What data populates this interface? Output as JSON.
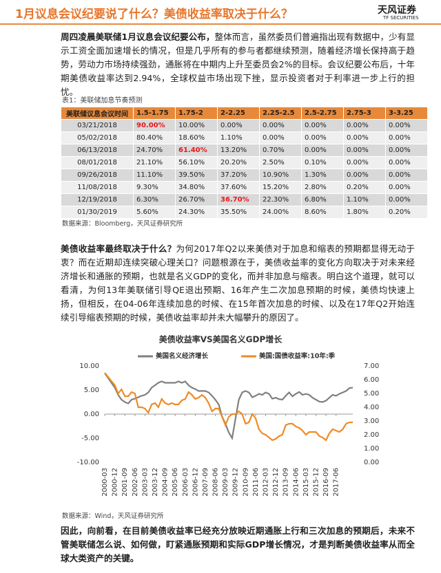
{
  "header": {
    "title": "1月议息会议纪要说了什么？美债收益率取决于什么？",
    "logo": "天风证券",
    "logo_sub": "TF SECURITIES"
  },
  "paragraphs": [
    {
      "lead": "周四凌晨美联储1月议息会议纪要公布，",
      "body": "整体而言，虽然委员们普遍指出现有数据中，少有显示工资全面加速增长的情况，但是几乎所有的参与者都继续预测，随着经济增长保持高于趋势，劳动力市场持续强劲，通胀将在中期内上升至委员会2%的目标。会议纪要公布后，十年期美债收益率达到2.94%，全球权益市场出现下挫，显示投资者对于利率进一步上行的担忧。"
    },
    {
      "lead": "美债收益率最终取决于什么？",
      "body": "为何2017年Q2以来美债对于加息和缩表的预期都显得无动于衷？而在近期却连续突破心理关口？问题根源在于，美债收益率的变化方向取决于对未来经济增长和通胀的预期，也就是名义GDP的变化，而并非加息与缩表。明白这个道理，就可以看清，为何13年美联储引导QE退出预期、16年产生二次加息预期的时候，美债均快速上扬，但相反，在04-06年连续加息的时候、在15年首次加息的时候、以及在17年Q2开始连续引导缩表预期的时候，美债收益率却并未大幅攀升的原因了。"
    }
  ],
  "table": {
    "caption": "表1：美联储加息节奏预测",
    "header": [
      "美联储议息会议时间",
      "1.5-1.75",
      "1.75-2",
      "2-2.25",
      "2.25-2.5",
      "2.5-2.75",
      "2.75-3",
      "3-3.25"
    ],
    "rows": [
      [
        "03/21/2018",
        "90.00%",
        "10.00%",
        "0.00%",
        "0.00%",
        "0.00%",
        "0.00%",
        "0.00%"
      ],
      [
        "05/02/2018",
        "80.40%",
        "18.60%",
        "1.10%",
        "0.00%",
        "0.00%",
        "0.00%",
        "0.00%"
      ],
      [
        "06/13/2018",
        "24.70%",
        "61.40%",
        "13.20%",
        "0.70%",
        "0.00%",
        "0.00%",
        "0.00%"
      ],
      [
        "08/01/2018",
        "21.10%",
        "56.10%",
        "20.20%",
        "2.50%",
        "0.10%",
        "0.00%",
        "0.00%"
      ],
      [
        "09/26/2018",
        "11.10%",
        "39.50%",
        "37.20%",
        "10.90%",
        "1.30%",
        "0.00%",
        "0.00%"
      ],
      [
        "11/08/2018",
        "9.30%",
        "34.80%",
        "37.60%",
        "15.20%",
        "2.80%",
        "0.20%",
        "0.00%"
      ],
      [
        "12/19/2018",
        "6.30%",
        "26.70%",
        "36.70%",
        "22.30%",
        "6.80%",
        "1.10%",
        "0.00%"
      ],
      [
        "01/30/2019",
        "5.60%",
        "24.30%",
        "35.50%",
        "24.00%",
        "8.60%",
        "1.80%",
        "0.20%"
      ]
    ],
    "source": "数据来源：Bloomberg，天风证券研究所"
  },
  "chart": {
    "type": "line",
    "title": "美债收益率VS美国名义GDP增长",
    "categories": [
      "2000-03",
      null,
      null,
      "2000-12",
      null,
      null,
      "2001-09",
      null,
      null,
      "2002-06",
      null,
      null,
      "2003-03",
      null,
      null,
      "2003-12",
      null,
      null,
      "2004-09",
      null,
      null,
      "2005-06",
      null,
      null,
      "2006-03",
      null,
      null,
      "2006-12",
      null,
      null,
      "2007-09",
      null,
      null,
      "2008-06",
      null,
      null,
      "2009-03",
      null,
      null,
      "2009-12",
      null,
      null,
      "2010-09",
      null,
      null,
      "2011-06",
      null,
      null,
      "2012-03",
      null,
      null,
      "2012-12",
      null,
      null,
      "2013-09",
      null,
      null,
      "2014-06",
      null,
      null,
      "2015-03",
      null,
      null,
      "2015-12",
      null,
      null,
      "2016-09",
      null,
      null,
      "2017-06",
      null,
      null,
      null,
      null,
      null
    ],
    "series": [
      {
        "name": "美国名义经济增长",
        "color": "#7f7f7f",
        "values": [
          8.5,
          7.5,
          6.5,
          5.5,
          4.0,
          3.0,
          2.5,
          2.2,
          3.0,
          3.2,
          3.5,
          3.8,
          4.0,
          4.5,
          5.5,
          6.0,
          6.5,
          6.8,
          6.5,
          6.5,
          6.5,
          6.5,
          6.8,
          6.5,
          6.8,
          6.0,
          5.5,
          5.2,
          4.8,
          4.8,
          4.8,
          4.5,
          3.8,
          3.0,
          2.0,
          -0.5,
          -2.0,
          -3.8,
          -5.0,
          -1.0,
          3.0,
          4.5,
          4.8,
          4.5,
          3.5,
          3.8,
          4.2,
          4.0,
          4.5,
          4.2,
          3.2,
          3.4,
          3.1,
          3.0,
          3.8,
          4.5,
          3.7,
          4.2,
          4.6,
          4.0,
          4.2,
          4.0,
          3.4,
          3.0,
          2.6,
          2.5,
          2.8,
          3.4,
          4.0,
          3.8,
          4.2,
          4.5,
          4.8,
          5.4,
          5.5
        ]
      },
      {
        "name": "美国:国债收益率:10年:季",
        "color": "#f08a24",
        "axis": "y2",
        "values": [
          6.5,
          6.2,
          5.9,
          5.6,
          5.0,
          5.3,
          4.8,
          4.8,
          5.1,
          5.0,
          4.0,
          4.0,
          3.9,
          3.6,
          4.2,
          4.3,
          4.0,
          4.6,
          4.3,
          4.2,
          4.3,
          4.2,
          4.2,
          4.5,
          4.6,
          5.1,
          4.9,
          4.6,
          4.7,
          4.9,
          4.7,
          4.3,
          3.7,
          3.9,
          3.9,
          3.3,
          2.7,
          3.3,
          3.5,
          3.5,
          3.7,
          3.5,
          2.8,
          2.9,
          3.5,
          3.2,
          2.4,
          2.1,
          2.0,
          1.8,
          1.6,
          1.7,
          1.9,
          2.0,
          2.7,
          2.8,
          2.8,
          2.6,
          2.5,
          2.3,
          2.0,
          2.2,
          2.2,
          2.2,
          1.9,
          1.8,
          1.6,
          2.1,
          2.4,
          2.3,
          2.2,
          2.4,
          2.8,
          2.9,
          2.9
        ]
      }
    ],
    "ylim": [
      -10,
      10
    ],
    "yticks": [
      {
        "value": 10,
        "label": "10.00"
      },
      {
        "value": 5,
        "label": "5.00"
      },
      {
        "value": 0,
        "label": "0.00"
      },
      {
        "value": -5,
        "label": "-5.00"
      },
      {
        "value": -10,
        "label": "-10.00"
      }
    ],
    "y2lim": [
      0,
      7
    ],
    "y2ticks": [
      {
        "value": 7,
        "label": "7.00"
      },
      {
        "value": 6,
        "label": "6.00"
      },
      {
        "value": 5,
        "label": "5.00"
      },
      {
        "value": 4,
        "label": "4.00"
      },
      {
        "value": 3,
        "label": "3.00"
      },
      {
        "value": 2,
        "label": "2.00"
      },
      {
        "value": 1,
        "label": "1.00"
      },
      {
        "value": 0,
        "label": "0.00"
      }
    ],
    "source": "数据来源：Wind，天风证券研究所"
  },
  "conclusion": "因此，向前看，在目前美债收益率已经充分放映近期通胀上行和三次加息的预期后，未来不管美联储怎么说、如何做，盯紧通胀预期和实际GDP增长情况，才是判断美债收益率从而全球大类资产的关键。"
}
